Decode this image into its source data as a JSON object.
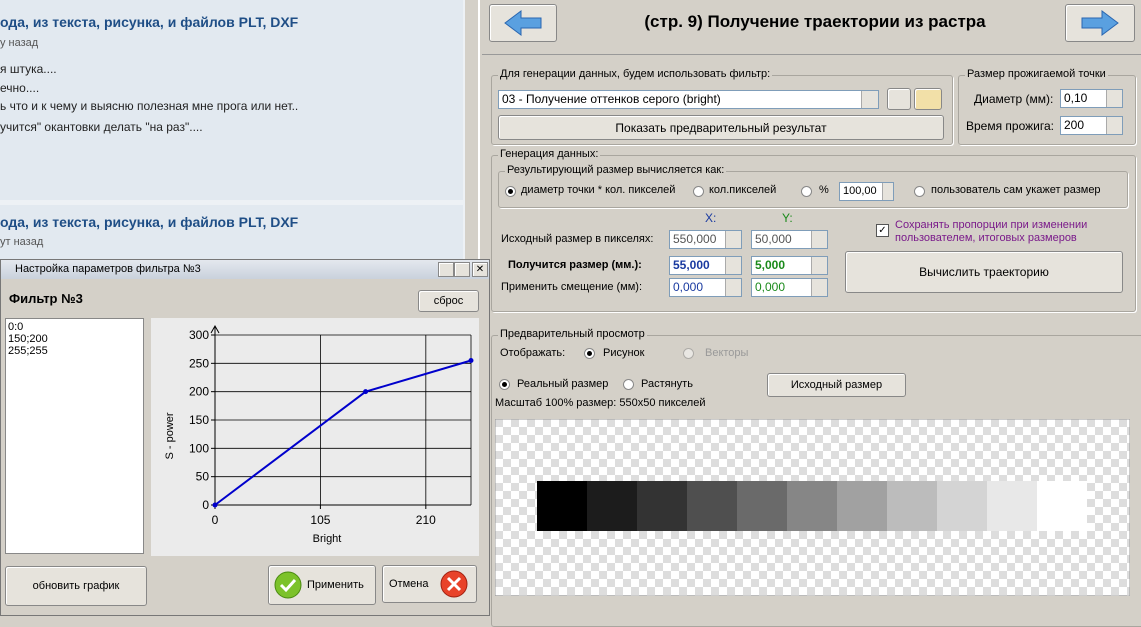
{
  "forum": {
    "posts": [
      {
        "title": "ода, из текста, рисунка, и файлов PLT, DXF",
        "time": "у назад",
        "lines": [
          "я штука....",
          "ечно....",
          "ь что и к чему и выясню полезная мне прога или нет..",
          "учится\" окантовки делать \"на раз\"...."
        ]
      },
      {
        "title": "ода, из текста, рисунка, и файлов PLT, DXF",
        "time": "ут назад"
      }
    ]
  },
  "main": {
    "title": "(стр. 9) Получение траектории из растра",
    "filter_group": {
      "label": "Для генерации данных, будем использовать фильтр:",
      "selected": "03 - Получение оттенков серого (bright)",
      "preview_button": "Показать предварительный результат"
    },
    "burn_group": {
      "label": "Размер прожигаемой точки",
      "diameter_label": "Диаметр (мм):",
      "diameter": "0,10",
      "time_label": "Время прожига:",
      "time": "200"
    },
    "generation": {
      "label": "Генерация данных:",
      "result_label": "Результирующий размер вычисляется как:",
      "options": [
        "диаметр точки * кол. пикселей",
        "кол.пикселей",
        "%",
        "пользователь сам укажет размер"
      ],
      "percent": "100,00",
      "x_header": "X:",
      "y_header": "Y:",
      "source_label": "Исходный размер в пикселях:",
      "source_x": "550,000",
      "source_y": "50,000",
      "result_size_label": "Получится размер (мм.):",
      "result_x": "55,000",
      "result_y": "5,000",
      "offset_label": "Применить смещение (мм):",
      "offset_x": "0,000",
      "offset_y": "0,000",
      "keep_proportions": "Сохранять пропорции при изменении пользователем, итоговых размеров",
      "compute_button": "Вычислить траекторию"
    },
    "preview": {
      "label": "Предварительный просмотр",
      "show_label": "Отображать:",
      "show_options": [
        "Рисунок",
        "Векторы"
      ],
      "scale_options": [
        "Реальный размер",
        "Растянуть"
      ],
      "original_size_button": "Исходный размер",
      "scale_info": "Масштаб 100% размер: 550x50 пикселей"
    }
  },
  "dialog": {
    "title": "Настройка параметров фильтра №3",
    "heading": "Фильтр №3",
    "reset_button": "сброс",
    "points": [
      "0:0",
      "150;200",
      "255;255"
    ],
    "refresh_button": "обновить график",
    "apply_button": "Применить",
    "cancel_button": "Отмена"
  },
  "chart_data": {
    "type": "line",
    "xlabel": "Bright",
    "ylabel": "S - power",
    "x": [
      0,
      150,
      255
    ],
    "series": [
      {
        "color": "#0000cc",
        "values": [
          0,
          200,
          255
        ]
      }
    ],
    "xlim": [
      0,
      255
    ],
    "ylim": [
      0,
      300
    ],
    "xticks": [
      0,
      105,
      210
    ],
    "yticks": [
      0,
      50,
      100,
      150,
      200,
      250,
      300
    ],
    "grid": true
  }
}
